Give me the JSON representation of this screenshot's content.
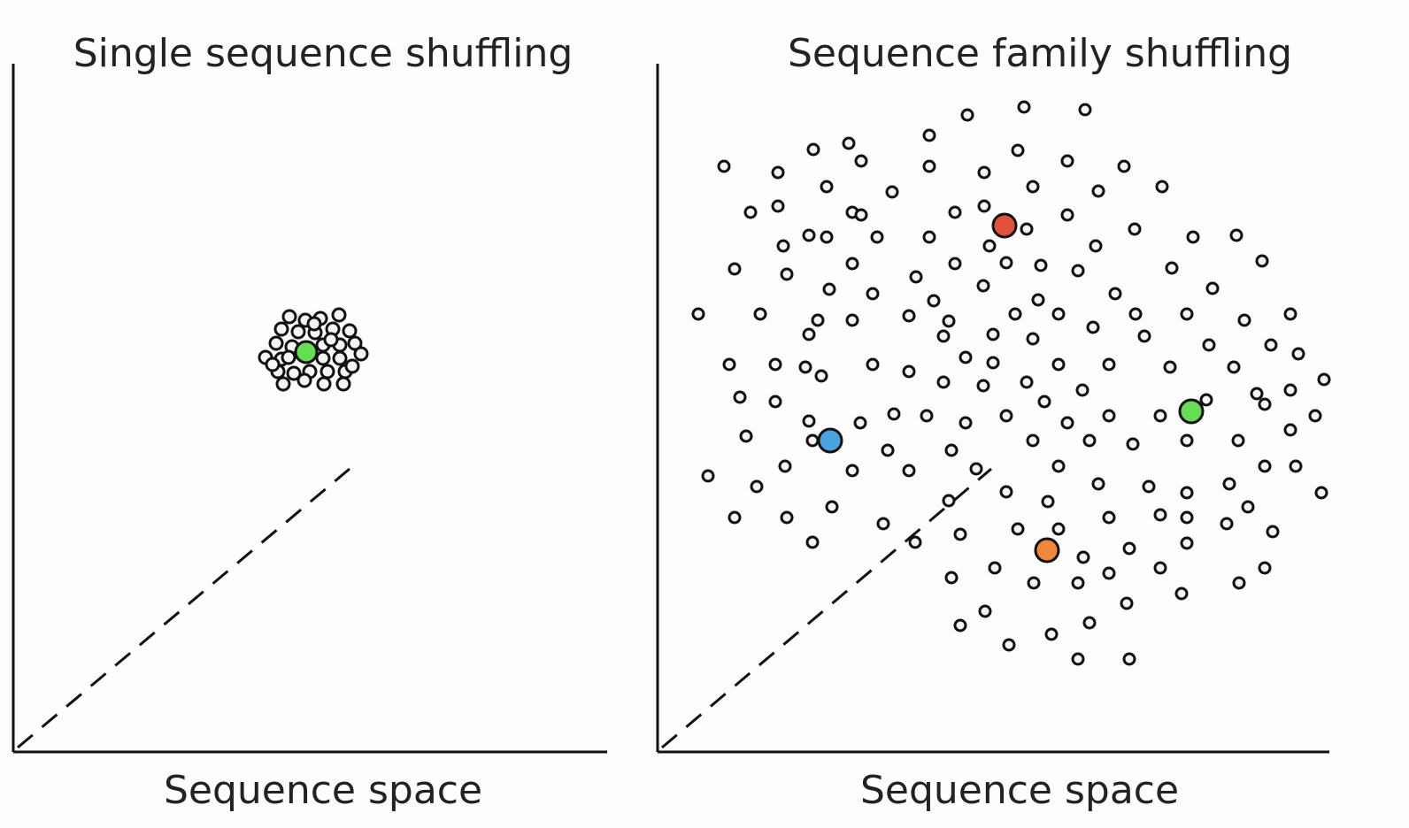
{
  "panels": [
    {
      "title": "Single sequence shuffling",
      "xlabel": "Sequence space",
      "highlighted_points": [
        {
          "color_name": "green",
          "color": "#66dd55"
        }
      ]
    },
    {
      "title": "Sequence family shuffling",
      "xlabel": "Sequence space",
      "highlighted_points": [
        {
          "color_name": "red",
          "color": "#e0523c"
        },
        {
          "color_name": "blue",
          "color": "#4aa3df"
        },
        {
          "color_name": "green",
          "color": "#66dd55"
        },
        {
          "color_name": "orange",
          "color": "#f0873a"
        }
      ]
    }
  ],
  "colors": {
    "axis": "#111111",
    "point_outline": "#111111",
    "point_fill": "#f4f4f4",
    "dashed_line": "#111111"
  }
}
